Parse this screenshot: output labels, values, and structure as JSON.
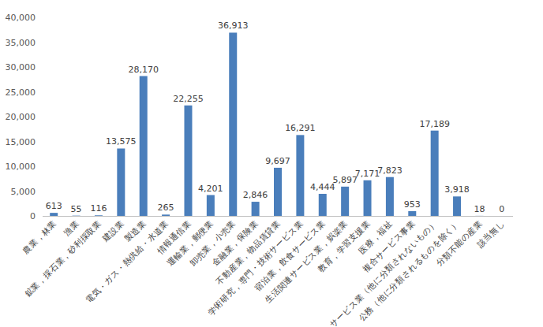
{
  "chart_data": {
    "type": "bar",
    "categories": [
      "農業，林業",
      "漁業",
      "鉱業，採石業，砂利採取業",
      "建設業",
      "製造業",
      "電気・ガス・熱供給・水道業",
      "情報通信業",
      "運輸業，郵便業",
      "卸売業，小売業",
      "金融業，保険業",
      "不動産業，物品賃貸業",
      "学術研究，専門・技術サービス業",
      "宿泊業，飲食サービス業",
      "生活関連サービス業，娯楽業",
      "教育，学習支援業",
      "医療，福祉",
      "複合サービス事業",
      "サービス業（他に分類されないもの）",
      "公務（他に分類されるものを除く）",
      "分類不能の産業",
      "該当無し"
    ],
    "values": [
      613,
      55,
      116,
      13575,
      28170,
      265,
      22255,
      4201,
      36913,
      2846,
      9697,
      16291,
      4444,
      5897,
      7171,
      7823,
      953,
      17189,
      3918,
      18,
      0
    ],
    "value_labels": [
      "613",
      "55",
      "116",
      "13,575",
      "28,170",
      "265",
      "22,255",
      "4,201",
      "36,913",
      "2,846",
      "9,697",
      "16,291",
      "4,444",
      "5,897",
      "7,171",
      "7,823",
      "953",
      "17,189",
      "3,918",
      "18",
      "0"
    ],
    "color": "#4a7ebb",
    "ylim": [
      0,
      40000
    ],
    "yticks": [
      0,
      {
        "value": 5000,
        "label": "5,000"
      },
      {
        "value": 10000,
        "label": "10,000"
      },
      {
        "value": 15000,
        "label": "15,000"
      },
      {
        "value": 20000,
        "label": "20,000"
      },
      {
        "value": 25000,
        "label": "25,000"
      },
      {
        "value": 30000,
        "label": "30,000"
      },
      {
        "value": 35000,
        "label": "35,000"
      },
      {
        "value": 40000,
        "label": "40,000"
      }
    ],
    "grid": false,
    "data_labels": true
  }
}
